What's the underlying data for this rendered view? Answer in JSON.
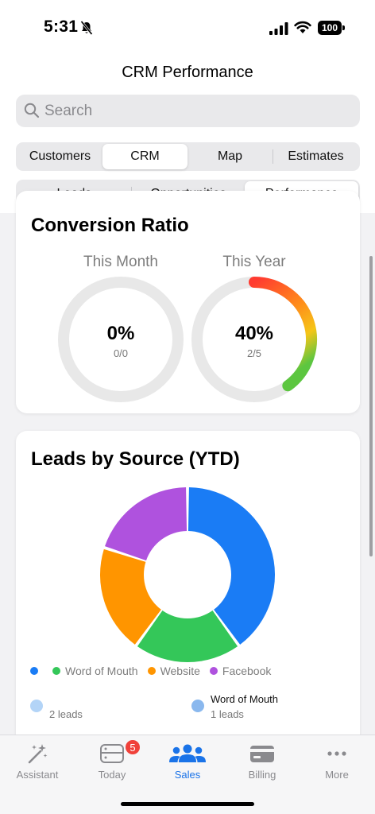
{
  "status": {
    "time": "5:31",
    "battery": "100"
  },
  "header": {
    "title": "CRM Performance"
  },
  "search": {
    "placeholder": "Search"
  },
  "tabs_primary": [
    {
      "label": "Customers",
      "active": false
    },
    {
      "label": "CRM",
      "active": true
    },
    {
      "label": "Map",
      "active": false
    },
    {
      "label": "Estimates",
      "active": false
    }
  ],
  "tabs_secondary": [
    {
      "label": "Leads",
      "active": false
    },
    {
      "label": "Opportunities",
      "active": false
    },
    {
      "label": "Performance",
      "active": true
    }
  ],
  "conversion": {
    "title": "Conversion Ratio",
    "this_month": {
      "label": "This Month",
      "value": "0%",
      "detail": "0/0",
      "fraction": 0
    },
    "this_year": {
      "label": "This Year",
      "value": "40%",
      "detail": "2/5",
      "fraction": 0.4
    }
  },
  "leads_by_source": {
    "title": "Leads by Source (YTD)",
    "legend": [
      {
        "label": "",
        "color": "#1a7cf5"
      },
      {
        "label": "Word of Mouth",
        "color": "#34c759"
      },
      {
        "label": "Website",
        "color": "#ff9500"
      },
      {
        "label": "Facebook",
        "color": "#af52de"
      }
    ],
    "stats": [
      {
        "name": "",
        "count": "2 leads",
        "color": "#b3d4f7"
      },
      {
        "name": "Word of Mouth",
        "count": "1 leads",
        "color": "#8ab8ee"
      }
    ]
  },
  "chart_data": {
    "type": "pie",
    "categories": [
      "",
      "Word of Mouth",
      "Website",
      "Facebook"
    ],
    "values": [
      2,
      1,
      1,
      1
    ],
    "colors": [
      "#1a7cf5",
      "#34c759",
      "#ff9500",
      "#af52de"
    ]
  },
  "tabbar": [
    {
      "label": "Assistant",
      "icon": "magic-wand-icon",
      "active": false
    },
    {
      "label": "Today",
      "icon": "today-icon",
      "active": false,
      "badge": "5"
    },
    {
      "label": "Sales",
      "icon": "people-icon",
      "active": true
    },
    {
      "label": "Billing",
      "icon": "credit-card-icon",
      "active": false
    },
    {
      "label": "More",
      "icon": "ellipsis-icon",
      "active": false
    }
  ]
}
